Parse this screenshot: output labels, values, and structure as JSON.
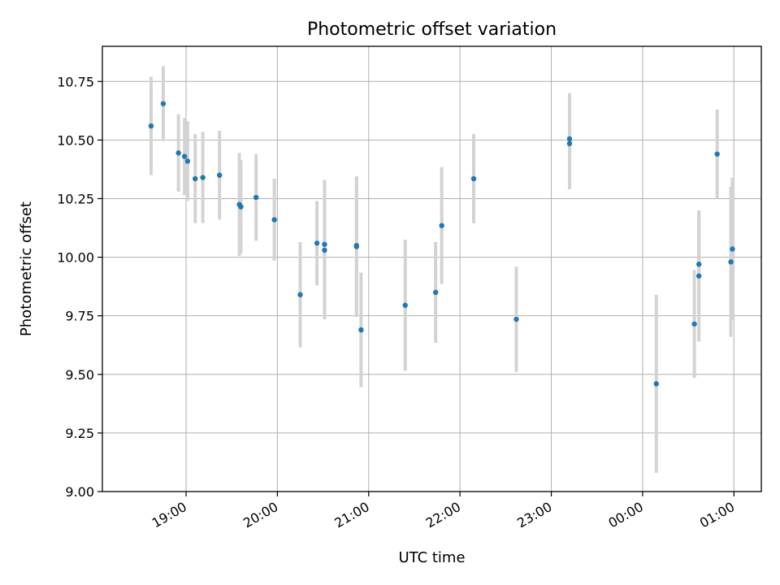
{
  "chart_data": {
    "type": "scatter",
    "title": "Photometric offset variation",
    "xlabel": "UTC time",
    "ylabel": "Photometric offset",
    "x_axis_type": "time",
    "xlim": [
      "18:05",
      "01:18"
    ],
    "ylim": [
      9.0,
      10.9
    ],
    "x_ticks": [
      "19:00",
      "20:00",
      "21:00",
      "22:00",
      "23:00",
      "00:00",
      "01:00"
    ],
    "y_ticks": [
      "9.00",
      "9.25",
      "9.50",
      "9.75",
      "10.00",
      "10.25",
      "10.50",
      "10.75"
    ],
    "grid": true,
    "legend": "none",
    "colors": {
      "point": "#1f77b4",
      "error_bar": "#d3d3d3",
      "grid": "#b0b0b0"
    },
    "points": [
      {
        "time": "18:37",
        "y": 10.56,
        "err": 0.21
      },
      {
        "time": "18:45",
        "y": 10.655,
        "err": 0.16
      },
      {
        "time": "18:55",
        "y": 10.445,
        "err": 0.165
      },
      {
        "time": "18:59",
        "y": 10.43,
        "err": 0.165
      },
      {
        "time": "19:01",
        "y": 10.41,
        "err": 0.17
      },
      {
        "time": "19:06",
        "y": 10.335,
        "err": 0.19
      },
      {
        "time": "19:11",
        "y": 10.34,
        "err": 0.195
      },
      {
        "time": "19:22",
        "y": 10.35,
        "err": 0.19
      },
      {
        "time": "19:35",
        "y": 10.225,
        "err": 0.22
      },
      {
        "time": "19:36",
        "y": 10.215,
        "err": 0.2
      },
      {
        "time": "19:46",
        "y": 10.255,
        "err": 0.185
      },
      {
        "time": "19:58",
        "y": 10.16,
        "err": 0.175
      },
      {
        "time": "20:15",
        "y": 9.84,
        "err": 0.225
      },
      {
        "time": "20:26",
        "y": 10.06,
        "err": 0.18
      },
      {
        "time": "20:31",
        "y": 10.055,
        "err": 0.275
      },
      {
        "time": "20:31",
        "y": 10.03,
        "err": 0.295
      },
      {
        "time": "20:52",
        "y": 10.05,
        "err": 0.295
      },
      {
        "time": "20:52",
        "y": 10.045,
        "err": 0.3
      },
      {
        "time": "20:55",
        "y": 9.69,
        "err": 0.245
      },
      {
        "time": "21:24",
        "y": 9.795,
        "err": 0.28
      },
      {
        "time": "21:44",
        "y": 9.85,
        "err": 0.215
      },
      {
        "time": "21:48",
        "y": 10.135,
        "err": 0.25
      },
      {
        "time": "22:09",
        "y": 10.335,
        "err": 0.19
      },
      {
        "time": "22:37",
        "y": 9.735,
        "err": 0.225
      },
      {
        "time": "23:12",
        "y": 10.505,
        "err": 0.195
      },
      {
        "time": "23:12",
        "y": 10.485,
        "err": 0.195
      },
      {
        "time": "00:09",
        "y": 9.46,
        "err": 0.38
      },
      {
        "time": "00:34",
        "y": 9.715,
        "err": 0.23
      },
      {
        "time": "00:37",
        "y": 9.97,
        "err": 0.225
      },
      {
        "time": "00:37",
        "y": 9.92,
        "err": 0.28
      },
      {
        "time": "00:49",
        "y": 10.44,
        "err": 0.19
      },
      {
        "time": "00:58",
        "y": 9.98,
        "err": 0.32
      },
      {
        "time": "00:59",
        "y": 10.035,
        "err": 0.305
      }
    ]
  }
}
